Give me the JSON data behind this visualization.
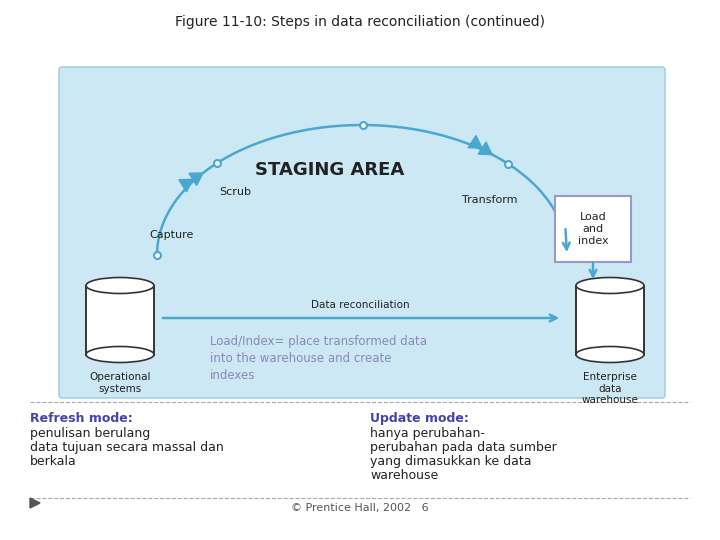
{
  "title": "Figure 11-10: Steps in data reconciliation (continued)",
  "staging_area_label": "STAGING AREA",
  "bg_color": "#cce8f4",
  "white": "#ffffff",
  "arrow_color": "#4aa8d0",
  "box_border_color": "#9999cc",
  "text_color_purple": "#8888bb",
  "text_color_dark": "#222222",
  "label_scrub": "Scrub",
  "label_transform": "Transform",
  "label_capture": "Capture",
  "label_load_index": "Load\nand\nindex",
  "label_data_recon": "Data reconciliation",
  "label_op_systems": "Operational\nsystems",
  "label_ent_dw": "Enterprise\ndata\nwarehouse",
  "annotation_text": "Load/Index= place transformed data\ninto the warehouse and create\nindexes",
  "refresh_mode_bold": "Refresh mode:",
  "refresh_mode_rest": " penulisan berulang\ndata tujuan secara massal dan\nberkala",
  "update_mode_bold": "Update mode:",
  "update_mode_rest": " hanya perubahan-\nperubahan pada data sumber\nyang dimasukkan ke data\nwarehouse",
  "footer_text": "© Prentice Hall, 2002   6",
  "bold_color": "#4444aa",
  "text_color_gray": "#555555"
}
